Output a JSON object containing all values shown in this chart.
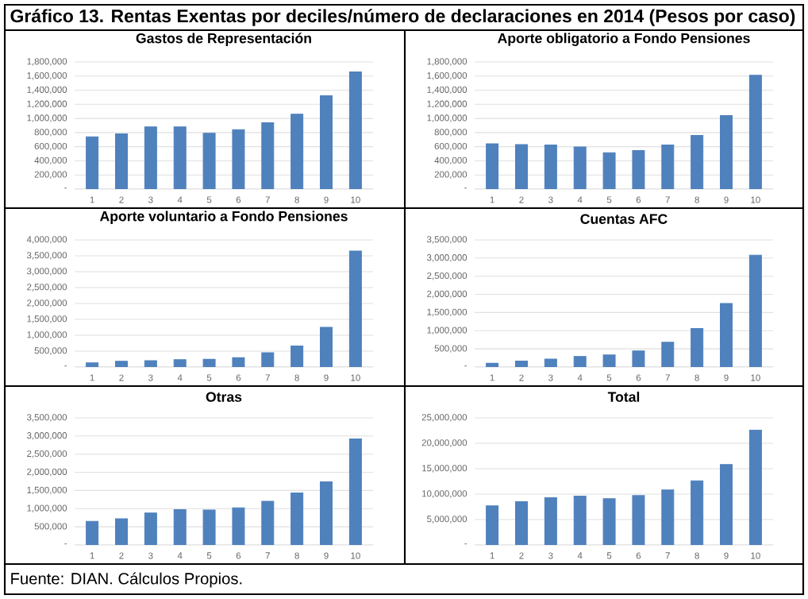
{
  "chart_data": [
    {
      "type": "other",
      "title": "Gráfico 13. Rentas Exentas por deciles/número de declaraciones en 2014 (Pesos por caso)",
      "annotations": [
        "Fuente: DIAN. Cálculos Propios."
      ]
    },
    {
      "type": "bar",
      "title": "Gastos de Representación",
      "categories": [
        "1",
        "2",
        "3",
        "4",
        "5",
        "6",
        "7",
        "8",
        "9",
        "10"
      ],
      "color": "#4f81bd",
      "grid": "y",
      "ylim": [
        0,
        1800000
      ],
      "values": [
        740000,
        780000,
        880000,
        880000,
        790000,
        840000,
        940000,
        1060000,
        1320000,
        1660000
      ],
      "yticks": [
        {
          "value": 0,
          "label": "-"
        },
        {
          "value": 200000,
          "label": "200,000"
        },
        {
          "value": 400000,
          "label": "400,000"
        },
        {
          "value": 600000,
          "label": "600,000"
        },
        {
          "value": 800000,
          "label": "800,000"
        },
        {
          "value": 1000000,
          "label": "1,000,000"
        },
        {
          "value": 1200000,
          "label": "1,200,000"
        },
        {
          "value": 1400000,
          "label": "1,400,000"
        },
        {
          "value": 1600000,
          "label": "1,600,000"
        },
        {
          "value": 1800000,
          "label": "1,800,000"
        }
      ]
    },
    {
      "type": "bar",
      "title": "Aporte obligatorio a Fondo Pensiones",
      "categories": [
        "1",
        "2",
        "3",
        "4",
        "5",
        "6",
        "7",
        "8",
        "9",
        "10"
      ],
      "color": "#4f81bd",
      "grid": "y",
      "ylim": [
        0,
        1800000
      ],
      "values": [
        640000,
        630000,
        625000,
        595000,
        515000,
        545000,
        625000,
        760000,
        1040000,
        1610000
      ],
      "yticks": [
        {
          "value": 0,
          "label": "-"
        },
        {
          "value": 200000,
          "label": "200,000"
        },
        {
          "value": 400000,
          "label": "400,000"
        },
        {
          "value": 600000,
          "label": "600,000"
        },
        {
          "value": 800000,
          "label": "800,000"
        },
        {
          "value": 1000000,
          "label": "1,000,000"
        },
        {
          "value": 1200000,
          "label": "1,200,000"
        },
        {
          "value": 1400000,
          "label": "1,400,000"
        },
        {
          "value": 1600000,
          "label": "1,600,000"
        },
        {
          "value": 1800000,
          "label": "1,800,000"
        }
      ]
    },
    {
      "type": "bar",
      "title": "Aporte voluntario a Fondo Pensiones",
      "categories": [
        "1",
        "2",
        "3",
        "4",
        "5",
        "6",
        "7",
        "8",
        "9",
        "10"
      ],
      "color": "#4f81bd",
      "grid": "y",
      "ylim": [
        0,
        4000000
      ],
      "values": [
        130000,
        180000,
        200000,
        230000,
        240000,
        290000,
        450000,
        660000,
        1250000,
        3650000
      ],
      "yticks": [
        {
          "value": 0,
          "label": "-"
        },
        {
          "value": 500000,
          "label": "500,000"
        },
        {
          "value": 1000000,
          "label": "1,000,000"
        },
        {
          "value": 1500000,
          "label": "1,500,000"
        },
        {
          "value": 2000000,
          "label": "2,000,000"
        },
        {
          "value": 2500000,
          "label": "2,500,000"
        },
        {
          "value": 3000000,
          "label": "3,000,000"
        },
        {
          "value": 3500000,
          "label": "3,500,000"
        },
        {
          "value": 4000000,
          "label": "4,000,000"
        }
      ]
    },
    {
      "type": "bar",
      "title": "Cuentas AFC",
      "categories": [
        "1",
        "2",
        "3",
        "4",
        "5",
        "6",
        "7",
        "8",
        "9",
        "10"
      ],
      "color": "#4f81bd",
      "grid": "y",
      "ylim": [
        0,
        3500000
      ],
      "values": [
        100000,
        160000,
        220000,
        290000,
        330000,
        440000,
        680000,
        1060000,
        1750000,
        3080000
      ],
      "yticks": [
        {
          "value": 0,
          "label": "-"
        },
        {
          "value": 500000,
          "label": "500,000"
        },
        {
          "value": 1000000,
          "label": "1,000,000"
        },
        {
          "value": 1500000,
          "label": "1,500,000"
        },
        {
          "value": 2000000,
          "label": "2,000,000"
        },
        {
          "value": 2500000,
          "label": "2,500,000"
        },
        {
          "value": 3000000,
          "label": "3,000,000"
        },
        {
          "value": 3500000,
          "label": "3,500,000"
        }
      ]
    },
    {
      "type": "bar",
      "title": "Otras",
      "categories": [
        "1",
        "2",
        "3",
        "4",
        "5",
        "6",
        "7",
        "8",
        "9",
        "10"
      ],
      "color": "#4f81bd",
      "grid": "y",
      "ylim": [
        0,
        3500000
      ],
      "values": [
        650000,
        720000,
        880000,
        970000,
        960000,
        1020000,
        1200000,
        1430000,
        1740000,
        2920000
      ],
      "yticks": [
        {
          "value": 0,
          "label": "-"
        },
        {
          "value": 500000,
          "label": "500,000"
        },
        {
          "value": 1000000,
          "label": "1,000,000"
        },
        {
          "value": 1500000,
          "label": "1,500,000"
        },
        {
          "value": 2000000,
          "label": "2,000,000"
        },
        {
          "value": 2500000,
          "label": "2,500,000"
        },
        {
          "value": 3000000,
          "label": "3,000,000"
        },
        {
          "value": 3500000,
          "label": "3,500,000"
        }
      ]
    },
    {
      "type": "bar",
      "title": "Total",
      "categories": [
        "1",
        "2",
        "3",
        "4",
        "5",
        "6",
        "7",
        "8",
        "9",
        "10"
      ],
      "color": "#4f81bd",
      "grid": "y",
      "ylim": [
        0,
        25000000
      ],
      "values": [
        7700000,
        8500000,
        9300000,
        9600000,
        9100000,
        9700000,
        10800000,
        12600000,
        15800000,
        22600000
      ],
      "yticks": [
        {
          "value": 0,
          "label": "-"
        },
        {
          "value": 5000000,
          "label": "5,000,000"
        },
        {
          "value": 10000000,
          "label": "10,000,000"
        },
        {
          "value": 15000000,
          "label": "15,000,000"
        },
        {
          "value": 20000000,
          "label": "20,000,000"
        },
        {
          "value": 25000000,
          "label": "25,000,000"
        }
      ]
    }
  ]
}
